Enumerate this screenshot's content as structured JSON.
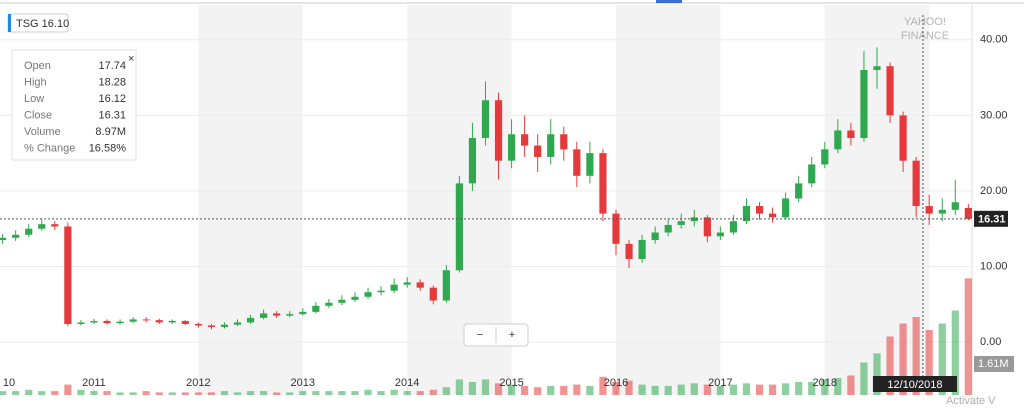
{
  "chart_data": {
    "type": "candlestick",
    "symbol_label": "TSG 16.10",
    "watermark": [
      "YAHOO!",
      "FINANCE"
    ],
    "x": [
      2010.125,
      2010.25,
      2010.375,
      2010.5,
      2010.625,
      2010.75,
      2010.875,
      2011.0,
      2011.125,
      2011.25,
      2011.375,
      2011.5,
      2011.625,
      2011.75,
      2011.875,
      2012.0,
      2012.125,
      2012.25,
      2012.375,
      2012.5,
      2012.625,
      2012.75,
      2012.875,
      2013.0,
      2013.125,
      2013.25,
      2013.375,
      2013.5,
      2013.625,
      2013.75,
      2013.875,
      2014.0,
      2014.125,
      2014.25,
      2014.375,
      2014.5,
      2014.625,
      2014.75,
      2014.875,
      2015.0,
      2015.125,
      2015.25,
      2015.375,
      2015.5,
      2015.625,
      2015.75,
      2015.875,
      2016.0,
      2016.125,
      2016.25,
      2016.375,
      2016.5,
      2016.625,
      2016.75,
      2016.875,
      2017.0,
      2017.125,
      2017.25,
      2017.375,
      2017.5,
      2017.625,
      2017.75,
      2017.875,
      2018.0,
      2018.125,
      2018.25,
      2018.375,
      2018.5,
      2018.625,
      2018.75,
      2018.875,
      2019.0,
      2019.125,
      2019.25,
      2019.375
    ],
    "open": [
      13.5,
      13.8,
      14.2,
      15.0,
      15.6,
      15.3,
      2.4,
      2.6,
      2.8,
      2.5,
      2.7,
      3.0,
      2.9,
      2.6,
      2.8,
      2.4,
      2.2,
      2.0,
      2.3,
      2.6,
      3.2,
      3.8,
      3.5,
      3.7,
      4.0,
      4.8,
      5.2,
      5.6,
      6.0,
      6.6,
      6.8,
      7.6,
      7.9,
      7.2,
      5.5,
      9.5,
      21.0,
      27.0,
      32.0,
      24.0,
      27.5,
      26.0,
      24.5,
      27.5,
      25.5,
      22.0,
      25.0,
      17.0,
      13.0,
      11.0,
      13.5,
      14.5,
      15.5,
      16.0,
      16.5,
      14.0,
      14.5,
      16.0,
      18.0,
      17.0,
      16.5,
      19.0,
      21.0,
      23.5,
      25.5,
      28.0,
      27.0,
      36.0,
      36.5,
      30.0,
      24.0,
      18.0,
      17.0,
      17.5,
      17.74
    ],
    "high": [
      14.3,
      14.8,
      15.6,
      16.3,
      16.0,
      15.8,
      2.9,
      3.1,
      3.0,
      3.0,
      3.3,
      3.3,
      3.1,
      3.0,
      2.9,
      2.6,
      2.4,
      2.6,
      3.0,
      3.6,
      4.3,
      4.1,
      4.1,
      4.5,
      5.3,
      5.7,
      6.2,
      6.6,
      7.2,
      7.4,
      8.4,
      8.6,
      8.3,
      7.5,
      10.2,
      22.0,
      29.0,
      34.5,
      33.0,
      29.5,
      30.0,
      27.5,
      29.5,
      28.5,
      26.5,
      26.5,
      25.5,
      17.5,
      13.5,
      14.2,
      15.3,
      16.3,
      17.0,
      17.5,
      16.8,
      15.3,
      16.8,
      19.0,
      18.5,
      17.8,
      19.8,
      22.0,
      24.5,
      26.5,
      29.5,
      29.0,
      38.5,
      39.0,
      37.0,
      30.5,
      24.5,
      19.5,
      19.0,
      21.5,
      18.28
    ],
    "low": [
      13.0,
      13.4,
      13.9,
      14.7,
      14.8,
      2.1,
      2.2,
      2.4,
      2.3,
      2.3,
      2.5,
      2.6,
      2.4,
      2.4,
      2.2,
      1.9,
      1.7,
      1.8,
      2.1,
      2.4,
      3.0,
      3.2,
      3.3,
      3.5,
      3.8,
      4.5,
      4.9,
      5.3,
      5.7,
      6.2,
      6.5,
      7.2,
      6.8,
      5.0,
      5.2,
      9.2,
      20.0,
      26.0,
      21.5,
      23.0,
      24.5,
      22.5,
      23.5,
      24.0,
      20.5,
      21.0,
      16.0,
      11.5,
      9.8,
      10.5,
      13.0,
      14.0,
      15.0,
      15.3,
      13.2,
      13.5,
      14.2,
      15.6,
      16.2,
      15.8,
      16.2,
      18.5,
      20.5,
      23.0,
      25.0,
      26.0,
      26.5,
      33.5,
      29.0,
      22.5,
      16.5,
      15.5,
      16.0,
      16.8,
      16.12
    ],
    "close": [
      13.8,
      14.2,
      15.0,
      15.6,
      15.3,
      2.4,
      2.6,
      2.8,
      2.5,
      2.7,
      3.0,
      2.9,
      2.6,
      2.8,
      2.4,
      2.2,
      2.0,
      2.3,
      2.6,
      3.2,
      3.8,
      3.5,
      3.7,
      4.0,
      4.8,
      5.2,
      5.6,
      6.0,
      6.6,
      6.8,
      7.6,
      7.9,
      7.2,
      5.5,
      9.5,
      21.0,
      27.0,
      32.0,
      24.0,
      27.5,
      26.0,
      24.5,
      27.5,
      25.5,
      22.0,
      25.0,
      17.0,
      13.0,
      11.0,
      13.5,
      14.5,
      15.5,
      16.0,
      16.5,
      14.0,
      14.5,
      16.0,
      18.0,
      17.0,
      16.5,
      19.0,
      21.0,
      23.5,
      25.5,
      28.0,
      27.0,
      36.0,
      36.5,
      30.0,
      24.0,
      18.0,
      17.0,
      17.5,
      18.5,
      16.31
    ],
    "volume": [
      0.3,
      0.3,
      0.4,
      0.3,
      0.3,
      0.8,
      0.4,
      0.3,
      0.3,
      0.2,
      0.2,
      0.3,
      0.2,
      0.2,
      0.2,
      0.2,
      0.2,
      0.3,
      0.2,
      0.3,
      0.3,
      0.2,
      0.2,
      0.3,
      0.3,
      0.3,
      0.3,
      0.3,
      0.4,
      0.3,
      0.4,
      0.3,
      0.3,
      0.4,
      0.6,
      1.2,
      1.0,
      1.2,
      0.9,
      0.8,
      0.7,
      0.6,
      0.7,
      0.7,
      0.8,
      0.7,
      1.4,
      1.0,
      1.1,
      0.8,
      0.7,
      0.7,
      0.8,
      0.9,
      0.8,
      0.7,
      0.8,
      0.9,
      0.8,
      0.8,
      0.9,
      1.0,
      1.0,
      1.2,
      1.3,
      1.5,
      2.5,
      3.2,
      4.5,
      5.5,
      6.0,
      5.0,
      5.5,
      6.5,
      8.97
    ],
    "up_color": "#2fa84f",
    "down_color": "#e5393b",
    "volume_ylim": [
      0,
      30
    ],
    "xlim": [
      2010.1,
      2019.41
    ],
    "xticks": [
      {
        "value": 2010,
        "label": "10"
      },
      2011,
      2012,
      2013,
      2014,
      2015,
      2016,
      2017,
      2018
    ],
    "ylim": [
      -7.0,
      44.6
    ],
    "yticks": [
      {
        "value": 0,
        "label": "0.00"
      },
      {
        "value": 10,
        "label": "10.00"
      },
      {
        "value": 20,
        "label": "20.00"
      },
      {
        "value": 30,
        "label": "30.00"
      },
      {
        "value": 40,
        "label": "40.00"
      }
    ],
    "grid": true,
    "last_price": {
      "value": 16.31,
      "label": "16.31"
    },
    "volume_label": "1.61M",
    "crosshair": {
      "x": 2018.94,
      "label": "12/10/2018"
    },
    "tooltip": [
      [
        "Open",
        "17.74"
      ],
      [
        "High",
        "18.28"
      ],
      [
        "Low",
        "16.12"
      ],
      [
        "Close",
        "16.31"
      ],
      [
        "Volume",
        "8.97M"
      ],
      [
        "% Change",
        "16.58%"
      ]
    ],
    "zoom_controls": [
      "−",
      "+"
    ],
    "os_watermark": "Activate V"
  }
}
